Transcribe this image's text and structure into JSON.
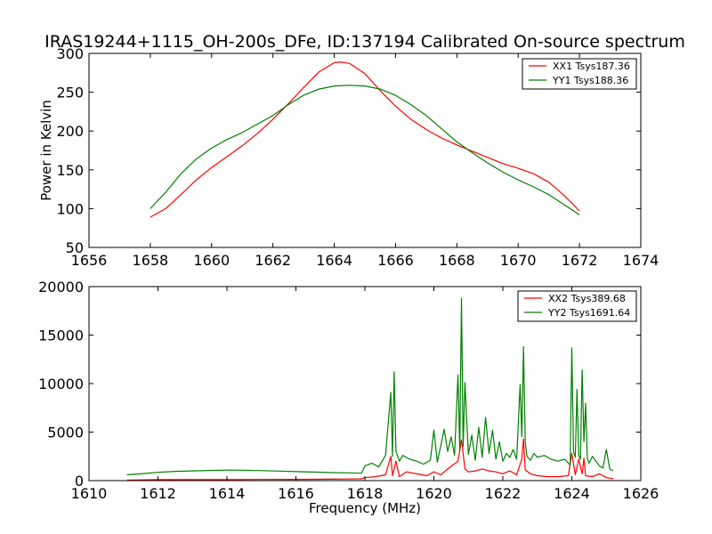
{
  "chart_data": [
    {
      "type": "line",
      "title": "IRAS19244+1115_OH-200s_DFe, ID:137194 Calibrated On-source spectrum",
      "xlabel": "",
      "ylabel": "Power in Kelvin",
      "xlim": [
        1656,
        1674
      ],
      "ylim": [
        50,
        300
      ],
      "xticks": [
        "1656",
        "1658",
        "1660",
        "1662",
        "1664",
        "1666",
        "1668",
        "1670",
        "1672",
        "1674"
      ],
      "yticks": [
        "50",
        "100",
        "150",
        "200",
        "250",
        "300"
      ],
      "legend_position": "top-right",
      "grid": false,
      "series": [
        {
          "name": "XX1 Tsys187.36",
          "color": "#ff0000",
          "x": [
            1658,
            1658.5,
            1659,
            1659.5,
            1660,
            1660.5,
            1661,
            1661.5,
            1662,
            1662.5,
            1663,
            1663.5,
            1664,
            1664.2,
            1664.5,
            1665,
            1665.5,
            1666,
            1666.5,
            1667,
            1667.5,
            1668,
            1668.5,
            1669,
            1669.5,
            1670,
            1670.5,
            1671,
            1671.5,
            1672
          ],
          "y": [
            89,
            100,
            118,
            137,
            153,
            167,
            181,
            197,
            215,
            235,
            256,
            276,
            288,
            289,
            287,
            274,
            252,
            232,
            215,
            202,
            191,
            182,
            174,
            166,
            158,
            152,
            145,
            134,
            117,
            97
          ]
        },
        {
          "name": "YY1 Tsys188.36",
          "color": "#008000",
          "x": [
            1658,
            1658.5,
            1659,
            1659.5,
            1660,
            1660.5,
            1661,
            1661.5,
            1662,
            1662.5,
            1663,
            1663.5,
            1664,
            1664.5,
            1665,
            1665.5,
            1666,
            1666.5,
            1667,
            1667.5,
            1668,
            1668.5,
            1669,
            1669.5,
            1670,
            1670.5,
            1671,
            1671.5,
            1672
          ],
          "y": [
            100,
            121,
            145,
            164,
            178,
            189,
            198,
            209,
            220,
            234,
            246,
            254,
            258,
            259,
            258,
            254,
            246,
            234,
            220,
            203,
            186,
            172,
            159,
            147,
            137,
            128,
            118,
            105,
            92
          ]
        }
      ]
    },
    {
      "type": "line",
      "title": "",
      "xlabel": "Frequency (MHz)",
      "ylabel": "",
      "xlim": [
        1610,
        1626
      ],
      "ylim": [
        0,
        20000
      ],
      "xticks": [
        "1610",
        "1612",
        "1614",
        "1616",
        "1618",
        "1620",
        "1622",
        "1624",
        "1626"
      ],
      "yticks": [
        "0",
        "5000",
        "10000",
        "15000",
        "20000"
      ],
      "legend_position": "top-right",
      "grid": false,
      "series": [
        {
          "name": "XX2 Tsys389.68",
          "color": "#ff0000",
          "x": [
            1611.1,
            1612,
            1613,
            1614,
            1615,
            1616,
            1617,
            1617.9,
            1618.0,
            1618.3,
            1618.6,
            1618.75,
            1618.8,
            1618.9,
            1619.0,
            1619.2,
            1619.5,
            1619.8,
            1620.0,
            1620.2,
            1620.4,
            1620.7,
            1620.8,
            1620.9,
            1621.0,
            1621.2,
            1621.4,
            1621.6,
            1621.8,
            1622.0,
            1622.2,
            1622.4,
            1622.55,
            1622.6,
            1622.65,
            1622.8,
            1623.0,
            1623.3,
            1623.6,
            1623.9,
            1624.0,
            1624.1,
            1624.2,
            1624.3,
            1624.35,
            1624.4,
            1624.6,
            1624.8,
            1625.0,
            1625.2
          ],
          "y": [
            50,
            100,
            100,
            100,
            120,
            130,
            150,
            180,
            300,
            400,
            600,
            2500,
            500,
            2000,
            400,
            900,
            700,
            500,
            900,
            600,
            1200,
            2000,
            4200,
            1200,
            900,
            1000,
            1200,
            1000,
            900,
            700,
            1000,
            600,
            2200,
            4300,
            1100,
            700,
            500,
            400,
            400,
            500,
            2800,
            600,
            2200,
            700,
            2300,
            500,
            400,
            700,
            300,
            200
          ]
        },
        {
          "name": "YY2 Tsys1691.64",
          "color": "#008000",
          "x": [
            1611.1,
            1611.5,
            1612,
            1612.5,
            1613,
            1613.5,
            1614,
            1614.5,
            1615,
            1615.5,
            1616,
            1616.5,
            1617,
            1617.5,
            1617.9,
            1618.0,
            1618.2,
            1618.4,
            1618.6,
            1618.75,
            1618.8,
            1618.85,
            1618.9,
            1619.0,
            1619.1,
            1619.3,
            1619.5,
            1619.7,
            1619.9,
            1620.0,
            1620.1,
            1620.3,
            1620.4,
            1620.5,
            1620.6,
            1620.7,
            1620.75,
            1620.8,
            1620.85,
            1620.9,
            1621.0,
            1621.1,
            1621.2,
            1621.3,
            1621.4,
            1621.5,
            1621.6,
            1621.7,
            1621.8,
            1621.9,
            1622.0,
            1622.1,
            1622.2,
            1622.3,
            1622.4,
            1622.5,
            1622.55,
            1622.6,
            1622.65,
            1622.7,
            1622.8,
            1622.9,
            1623.0,
            1623.2,
            1623.4,
            1623.6,
            1623.8,
            1623.95,
            1624.0,
            1624.05,
            1624.1,
            1624.15,
            1624.2,
            1624.25,
            1624.3,
            1624.35,
            1624.4,
            1624.45,
            1624.5,
            1624.6,
            1624.7,
            1624.8,
            1624.9,
            1625.0,
            1625.1,
            1625.2
          ],
          "y": [
            600,
            700,
            850,
            950,
            1000,
            1050,
            1080,
            1070,
            1030,
            980,
            930,
            880,
            830,
            800,
            760,
            1500,
            1800,
            1400,
            2600,
            9100,
            2500,
            11200,
            3000,
            2000,
            2600,
            2200,
            2000,
            1700,
            2100,
            5200,
            1900,
            5300,
            3000,
            4500,
            2600,
            10900,
            3000,
            18800,
            3500,
            10100,
            2700,
            4700,
            2100,
            5500,
            2400,
            6500,
            2800,
            5200,
            2200,
            4000,
            2000,
            2800,
            2400,
            3200,
            2200,
            9900,
            4500,
            13800,
            4000,
            2500,
            2100,
            2800,
            2400,
            2600,
            2200,
            2000,
            2200,
            1600,
            13700,
            3000,
            2400,
            9400,
            2600,
            2200,
            11400,
            4000,
            8000,
            2300,
            1800,
            2500,
            2000,
            1500,
            1300,
            3200,
            1200,
            1000
          ]
        }
      ]
    }
  ]
}
